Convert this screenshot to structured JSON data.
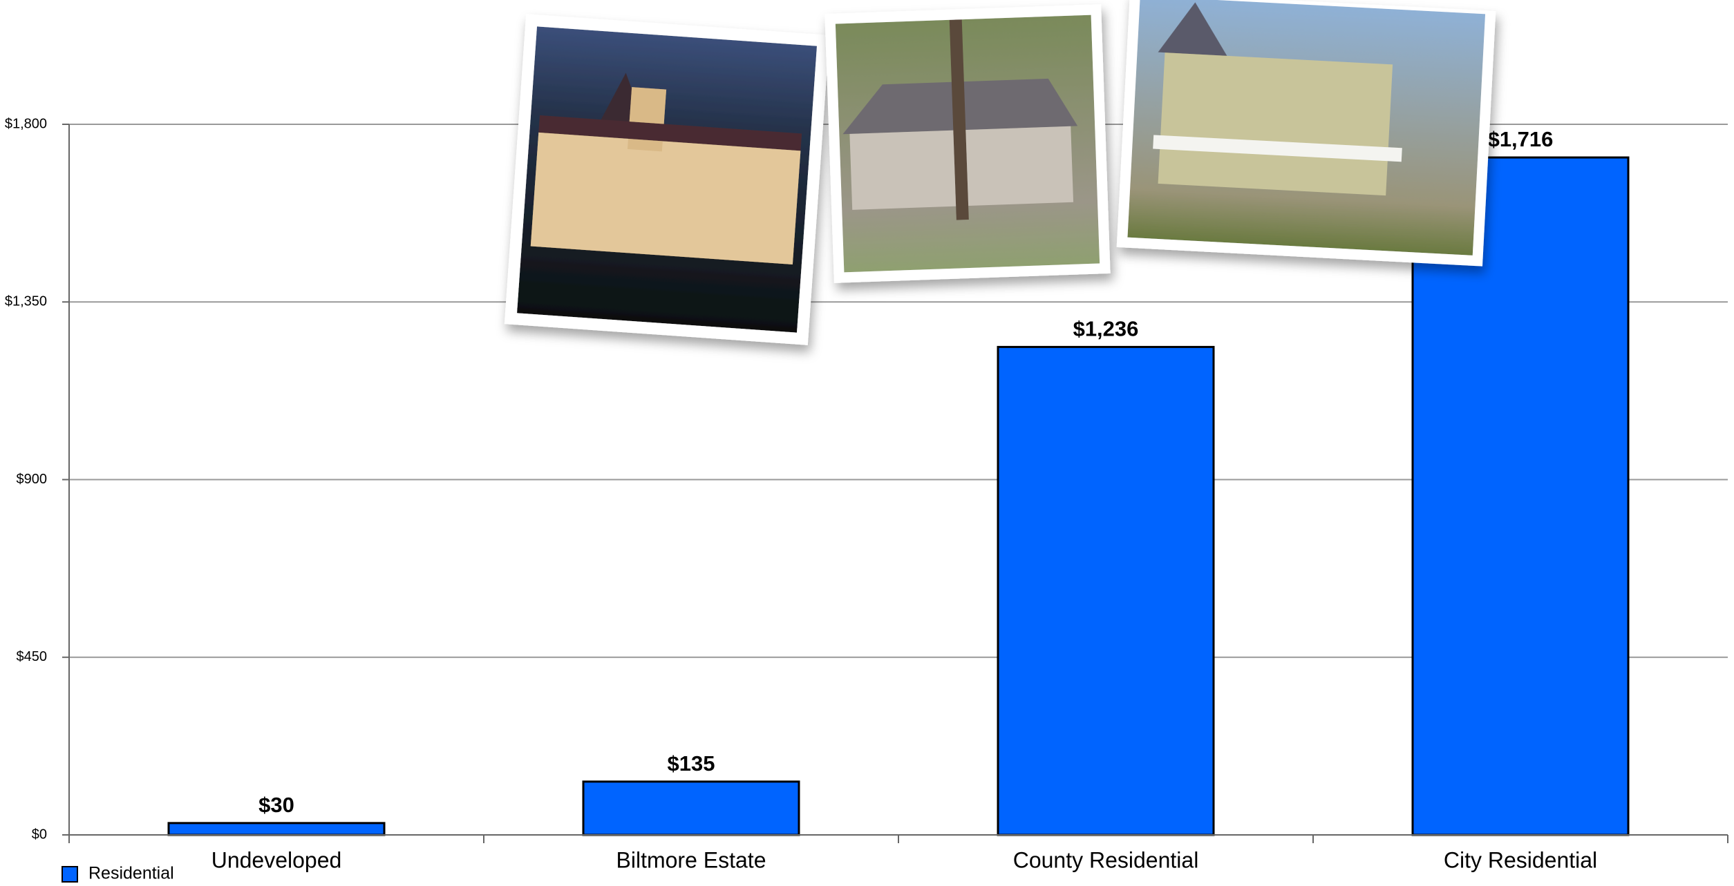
{
  "chart_data": {
    "type": "bar",
    "categories": [
      "Undeveloped",
      "Biltmore Estate",
      "County Residential",
      "City Residential"
    ],
    "series": [
      {
        "name": "Residential",
        "color": "#0064ff",
        "values": [
          30,
          135,
          1236,
          1716
        ],
        "value_labels": [
          "$30",
          "$135",
          "$1,236",
          "$1,716"
        ]
      }
    ],
    "ylim": [
      0,
      1800
    ],
    "yticks": [
      {
        "value": 0,
        "label": "$0"
      },
      {
        "value": 450,
        "label": "$450"
      },
      {
        "value": 900,
        "label": "$900"
      },
      {
        "value": 1350,
        "label": "$1,350"
      },
      {
        "value": 1800,
        "label": "$1,800"
      }
    ],
    "grid": true,
    "legend": "bottom-left"
  }
}
